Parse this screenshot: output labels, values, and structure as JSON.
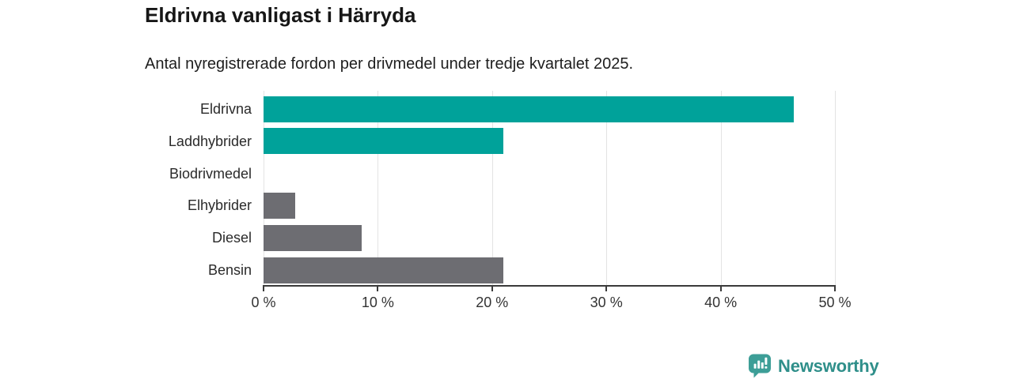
{
  "header": {
    "title": "Eldrivna vanligast i Härryda",
    "subtitle": "Antal nyregistrerade fordon per drivmedel under tredje kvartalet 2025."
  },
  "chart_data": {
    "type": "bar",
    "orientation": "horizontal",
    "title": "Eldrivna vanligast i Härryda",
    "subtitle": "Antal nyregistrerade fordon per drivmedel under tredje kvartalet 2025.",
    "categories": [
      "Eldrivna",
      "Laddhybrider",
      "Biodrivmedel",
      "Elhybrider",
      "Diesel",
      "Bensin"
    ],
    "values": [
      46.4,
      21.0,
      0,
      2.8,
      8.6,
      21.0
    ],
    "unit": "%",
    "xlim": [
      0,
      50
    ],
    "x_ticks": [
      0,
      10,
      20,
      30,
      40,
      50
    ],
    "x_tick_labels": [
      "0 %",
      "10 %",
      "20 %",
      "30 %",
      "40 %",
      "50 %"
    ],
    "grid": "vertical",
    "legend": "none",
    "bar_colors": [
      "#00a29a",
      "#00a29a",
      "#6d6d72",
      "#6d6d72",
      "#6d6d72",
      "#6d6d72"
    ]
  },
  "colors": {
    "bar_highlight": "#00a29a",
    "bar_default": "#6d6d72",
    "gridline": "#e3e3e3",
    "axis": "#3a3a3a",
    "tick_label": "#333333",
    "category_label": "#2a2a2a",
    "title": "#161616",
    "subtitle": "#1e1e1e"
  },
  "branding": {
    "logo_label": "Newsworthy",
    "icon_color": "#3d9e97",
    "text_color": "#2f8f8a"
  }
}
